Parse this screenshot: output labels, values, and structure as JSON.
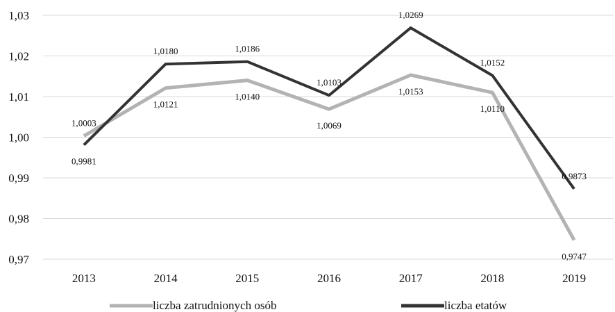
{
  "chart_data": {
    "type": "line",
    "title": "",
    "xlabel": "",
    "ylabel": "",
    "categories": [
      "2013",
      "2014",
      "2015",
      "2016",
      "2017",
      "2018",
      "2019"
    ],
    "y_ticks": [
      "0,97",
      "0,98",
      "0,99",
      "1,00",
      "1,01",
      "1,02",
      "1,03"
    ],
    "ylim": [
      0.97,
      1.03
    ],
    "grid": true,
    "legend_position": "bottom",
    "series": [
      {
        "name": "liczba zatrudnionych osób",
        "color": "#b3b3b3",
        "values": [
          1.0003,
          1.0121,
          1.014,
          1.0069,
          1.0153,
          1.011,
          0.9747
        ],
        "labels": [
          "1,0003",
          "1,0121",
          "1,0140",
          "1,0069",
          "1,0153",
          "1,0110",
          "0,9747"
        ]
      },
      {
        "name": "liczba etatów",
        "color": "#333333",
        "values": [
          0.9981,
          1.018,
          1.0186,
          1.0103,
          1.0269,
          1.0152,
          0.9873
        ],
        "labels": [
          "0,9981",
          "1,0180",
          "1,0186",
          "1,0103",
          "1,0269",
          "1,0152",
          "0,9873"
        ]
      }
    ]
  }
}
